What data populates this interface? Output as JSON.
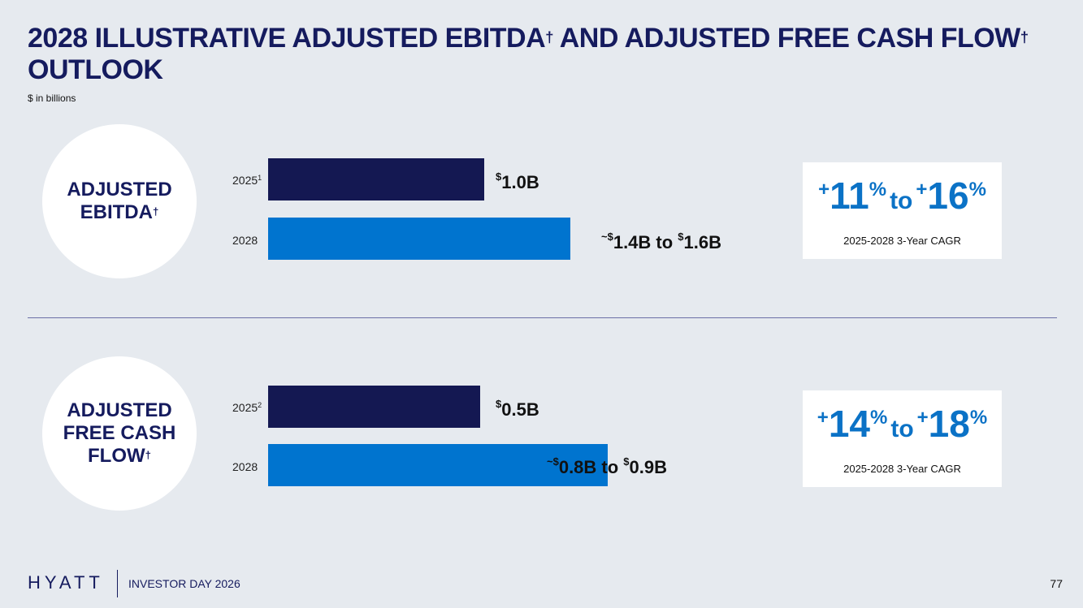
{
  "slide": {
    "title_main": "2028 ILLUSTRATIVE ADJUSTED EBITDA",
    "title_dagger1": "†",
    "title_mid": " AND ADJUSTED FREE CASH FLOW",
    "title_dagger2": "†",
    "title_end": "OUTLOOK",
    "subtitle": "$ in billions"
  },
  "sections": [
    {
      "label_line1": "ADJUSTED",
      "label_line2": "EBITDA",
      "label_line3": "",
      "label_dagger": "†",
      "rows": [
        {
          "year": "2025",
          "footnote": "1",
          "value_label_prefix": "",
          "value_label": "1.0B",
          "value_label_end": "",
          "value_label_end_num": ""
        },
        {
          "year": "2028",
          "footnote": "",
          "value_label_prefix": "~",
          "value_label": "1.4B  to ",
          "value_label_end": "$",
          "value_label_end_num": "1.6B"
        }
      ],
      "cagr_low": "11",
      "cagr_high": "16",
      "cagr_caption": "2025-2028 3-Year CAGR"
    },
    {
      "label_line1": "ADJUSTED",
      "label_line2": "FREE CASH",
      "label_line3": "FLOW",
      "label_dagger": "†",
      "rows": [
        {
          "year": "2025",
          "footnote": "2",
          "value_label_prefix": "",
          "value_label": "0.5B",
          "value_label_end": "",
          "value_label_end_num": ""
        },
        {
          "year": "2028",
          "footnote": "",
          "value_label_prefix": "~",
          "value_label": "0.8B to ",
          "value_label_end": "$",
          "value_label_end_num": "0.9B"
        }
      ],
      "cagr_low": "14",
      "cagr_high": "18",
      "cagr_caption": "2025-2028 3-Year CAGR"
    }
  ],
  "cagr_sign": "+",
  "cagr_pct": "%",
  "cagr_to": "to",
  "currency": "$",
  "chart_data": [
    {
      "type": "bar",
      "orientation": "horizontal",
      "categories": [
        "2025",
        "2028"
      ],
      "values": [
        1.0,
        1.5
      ],
      "ranges": [
        [
          1.0,
          1.0
        ],
        [
          1.4,
          1.6
        ]
      ],
      "unit": "$B",
      "colors": [
        "#141852",
        "#0074cf"
      ]
    },
    {
      "type": "bar",
      "orientation": "horizontal",
      "categories": [
        "2025",
        "2028"
      ],
      "values": [
        0.5,
        0.85
      ],
      "ranges": [
        [
          0.5,
          0.5
        ],
        [
          0.8,
          0.9
        ]
      ],
      "unit": "$B",
      "colors": [
        "#141852",
        "#0074cf"
      ]
    }
  ],
  "footer": {
    "logo": "HYATT",
    "event": "INVESTOR DAY 2026",
    "page_number": "77"
  }
}
